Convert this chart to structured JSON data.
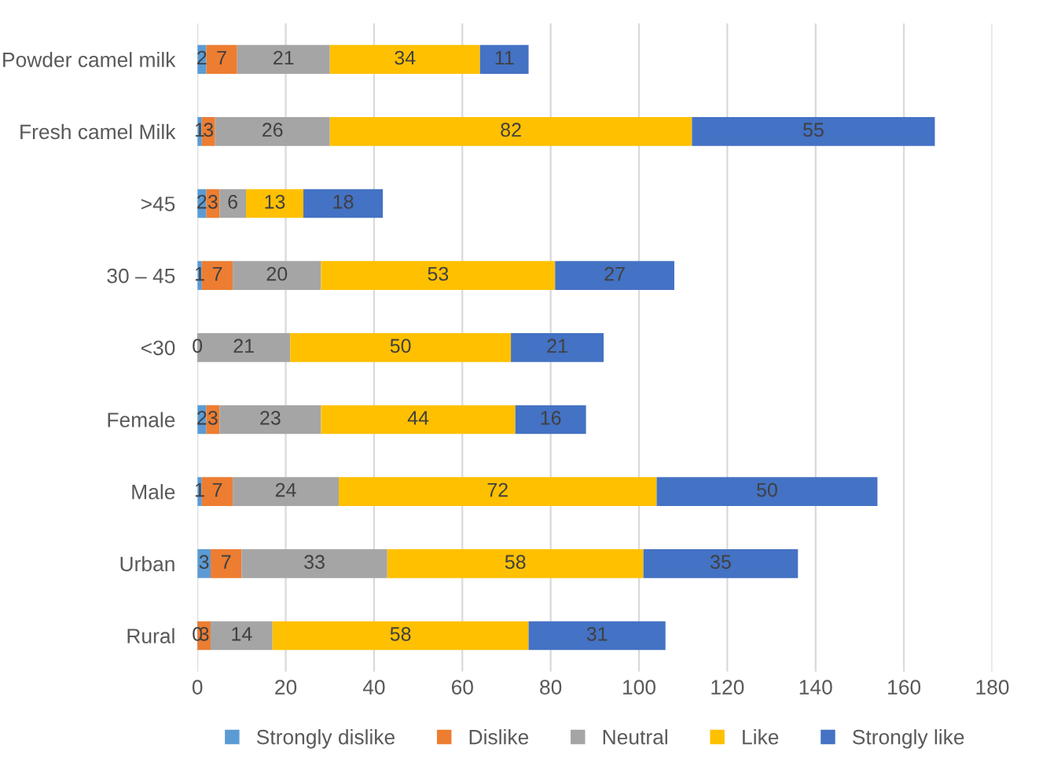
{
  "chart_data": {
    "type": "bar",
    "orientation": "horizontal",
    "stacked": true,
    "categories": [
      "Powder camel milk",
      "Fresh camel Milk",
      ">45",
      "30 – 45",
      "<30",
      "Female",
      "Male",
      "Urban",
      "Rural"
    ],
    "series": [
      {
        "name": "Strongly dislike",
        "color": "#5b9bd5",
        "values": [
          2,
          1,
          2,
          1,
          0,
          2,
          1,
          3,
          0
        ],
        "value_labels": [
          "2",
          "1",
          "2",
          "1",
          "0",
          "2",
          "1",
          "3",
          "0"
        ]
      },
      {
        "name": "Dislike",
        "color": "#ed7d31",
        "values": [
          7,
          3,
          3,
          7,
          0,
          3,
          7,
          7,
          3
        ],
        "value_labels": [
          "7",
          "3",
          "3",
          "7",
          null,
          "3",
          "7",
          "7",
          "3"
        ]
      },
      {
        "name": "Neutral",
        "color": "#a5a5a5",
        "values": [
          21,
          26,
          6,
          20,
          21,
          23,
          24,
          33,
          14
        ],
        "value_labels": [
          "21",
          "26",
          "6",
          "20",
          "21",
          "23",
          "24",
          "33",
          "14"
        ]
      },
      {
        "name": "Like",
        "color": "#ffc000",
        "values": [
          34,
          82,
          13,
          53,
          50,
          44,
          72,
          58,
          58
        ],
        "value_labels": [
          "34",
          "82",
          "13",
          "53",
          "50",
          "44",
          "72",
          "58",
          "58"
        ]
      },
      {
        "name": "Strongly like",
        "color": "#4472c4",
        "values": [
          11,
          55,
          18,
          27,
          21,
          16,
          50,
          35,
          31
        ],
        "value_labels": [
          "11",
          "55",
          "18",
          "27",
          "21",
          "16",
          "50",
          "35",
          "31"
        ]
      }
    ],
    "xlim": [
      0,
      180
    ],
    "xticks": [
      0,
      20,
      40,
      60,
      80,
      100,
      120,
      140,
      160,
      180
    ],
    "grid": "x",
    "legend": "bottom"
  }
}
